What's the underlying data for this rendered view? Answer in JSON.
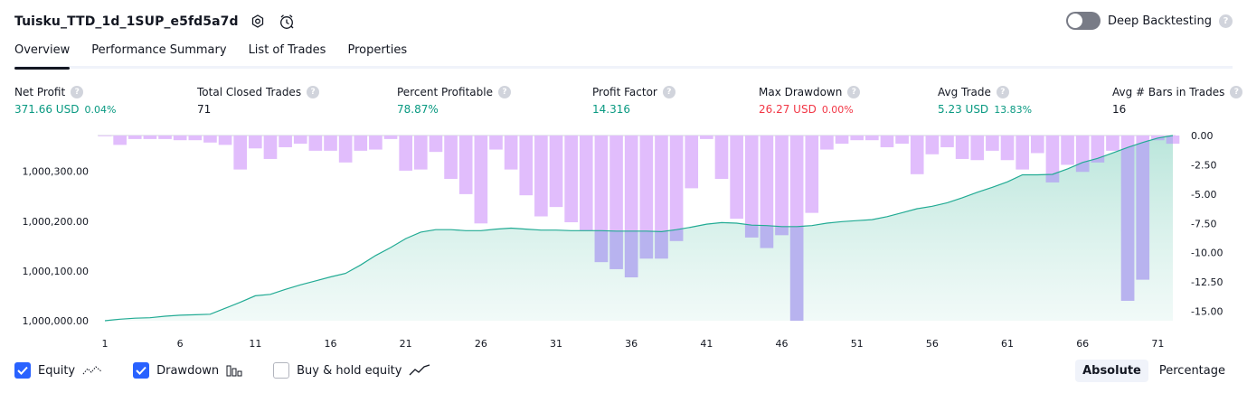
{
  "header": {
    "title": "Tuisku_TTD_1d_1SUP_e5fd5a7d",
    "deep_backtesting_label": "Deep Backtesting",
    "help_glyph": "?"
  },
  "tabs": [
    {
      "label": "Overview",
      "active": true
    },
    {
      "label": "Performance Summary",
      "active": false
    },
    {
      "label": "List of Trades",
      "active": false
    },
    {
      "label": "Properties",
      "active": false
    }
  ],
  "metrics": {
    "net_profit": {
      "label": "Net Profit",
      "value": "371.66 USD",
      "sub": "0.04%"
    },
    "total_closed_trades": {
      "label": "Total Closed Trades",
      "value": "71"
    },
    "percent_profitable": {
      "label": "Percent Profitable",
      "value": "78.87%"
    },
    "profit_factor": {
      "label": "Profit Factor",
      "value": "14.316"
    },
    "max_drawdown": {
      "label": "Max Drawdown",
      "value": "26.27 USD",
      "sub": "0.00%"
    },
    "avg_trade": {
      "label": "Avg Trade",
      "value": "5.23 USD",
      "sub": "13.83%"
    },
    "avg_bars": {
      "label": "Avg # Bars in Trades",
      "value": "16"
    }
  },
  "colors": {
    "positive": "#089981",
    "negative": "#f23645",
    "equity_line": "#22ab94",
    "drawdown_bar": "#e1bdfc",
    "drawdown_overlap": "#b8b3ef",
    "accent": "#2962ff"
  },
  "legend": {
    "equity": {
      "label": "Equity",
      "checked": true,
      "icon": "equity-icon"
    },
    "drawdown": {
      "label": "Drawdown",
      "checked": true,
      "icon": "drawdown-bars-icon"
    },
    "buy_hold": {
      "label": "Buy & hold equity",
      "checked": false,
      "icon": "buy-hold-line-icon"
    }
  },
  "modes": [
    {
      "label": "Absolute",
      "active": true
    },
    {
      "label": "Percentage",
      "active": false
    }
  ],
  "chart_data": [
    {
      "type": "area",
      "series": [
        {
          "name": "Equity",
          "axis": "left"
        }
      ],
      "x": [
        1,
        2,
        3,
        4,
        5,
        6,
        7,
        8,
        9,
        10,
        11,
        12,
        13,
        14,
        15,
        16,
        17,
        18,
        19,
        20,
        21,
        22,
        23,
        24,
        25,
        26,
        27,
        28,
        29,
        30,
        31,
        32,
        33,
        34,
        35,
        36,
        37,
        38,
        39,
        40,
        41,
        42,
        43,
        44,
        45,
        46,
        47,
        48,
        49,
        50,
        51,
        52,
        53,
        54,
        55,
        56,
        57,
        58,
        59,
        60,
        61,
        62,
        63,
        64,
        65,
        66,
        67,
        68,
        69,
        70,
        71,
        72
      ],
      "values": [
        1000000,
        1000003,
        1000005,
        1000006,
        1000009,
        1000011,
        1000012,
        1000013,
        1000025,
        1000037,
        1000050,
        1000053,
        1000063,
        1000072,
        1000080,
        1000088,
        1000095,
        1000112,
        1000131,
        1000147,
        1000165,
        1000178,
        1000183,
        1000183,
        1000181,
        1000181,
        1000184,
        1000186,
        1000184,
        1000182,
        1000182,
        1000181,
        1000181,
        1000181,
        1000180,
        1000180,
        1000180,
        1000179,
        1000183,
        1000188,
        1000194,
        1000197,
        1000196,
        1000192,
        1000191,
        1000189,
        1000189,
        1000191,
        1000196,
        1000199,
        1000201,
        1000203,
        1000209,
        1000217,
        1000225,
        1000230,
        1000237,
        1000247,
        1000258,
        1000268,
        1000279,
        1000293,
        1000293,
        1000294,
        1000305,
        1000318,
        1000326,
        1000337,
        1000348,
        1000358,
        1000367,
        1000372
      ],
      "ylim": [
        1000000,
        1000372
      ],
      "y_ticks": [
        "1,000,000.00",
        "1,000,100.00",
        "1,000,200.00",
        "1,000,300.00"
      ],
      "x_ticks": [
        "1",
        "6",
        "11",
        "16",
        "21",
        "26",
        "31",
        "36",
        "41",
        "46",
        "51",
        "56",
        "61",
        "66",
        "71"
      ]
    },
    {
      "type": "bar",
      "series": [
        {
          "name": "Drawdown",
          "axis": "right"
        }
      ],
      "x": [
        1,
        2,
        3,
        4,
        5,
        6,
        7,
        8,
        9,
        10,
        11,
        12,
        13,
        14,
        15,
        16,
        17,
        18,
        19,
        20,
        21,
        22,
        23,
        24,
        25,
        26,
        27,
        28,
        29,
        30,
        31,
        32,
        33,
        34,
        35,
        36,
        37,
        38,
        39,
        40,
        41,
        42,
        43,
        44,
        45,
        46,
        47,
        48,
        49,
        50,
        51,
        52,
        53,
        54,
        55,
        56,
        57,
        58,
        59,
        60,
        61,
        62,
        63,
        64,
        65,
        66,
        67,
        68,
        69,
        70,
        71,
        72
      ],
      "values": [
        0,
        -0.8,
        -0.3,
        -0.3,
        -0.3,
        -0.4,
        -0.4,
        -0.6,
        -0.8,
        -2.9,
        -1.1,
        -2.0,
        -1.0,
        -0.7,
        -1.3,
        -1.3,
        -2.3,
        -1.3,
        -1.2,
        -0.3,
        -3.0,
        -2.9,
        -1.4,
        -3.7,
        -5.0,
        -7.5,
        -1.2,
        -2.9,
        -5.1,
        -6.9,
        -6.1,
        -7.4,
        -8.1,
        -10.8,
        -11.4,
        -12.1,
        -10.5,
        -10.5,
        -9.0,
        -4.5,
        -0.3,
        -3.7,
        -7.1,
        -8.7,
        -9.6,
        -8.5,
        -15.8,
        -6.6,
        -1.2,
        -0.7,
        -0.4,
        -0.4,
        -1.0,
        -0.7,
        -3.3,
        -1.6,
        -1.0,
        -2.0,
        -2.1,
        -1.3,
        -2.1,
        -2.9,
        -1.5,
        -4.0,
        -2.5,
        -3.1,
        -2.3,
        -1.3,
        -14.1,
        -12.3,
        -0.4,
        -0.7
      ],
      "ylim": [
        -15.8,
        0
      ],
      "y_ticks": [
        "0.00",
        "-2.50",
        "-5.00",
        "-7.50",
        "-10.00",
        "-12.50",
        "-15.00"
      ]
    }
  ]
}
